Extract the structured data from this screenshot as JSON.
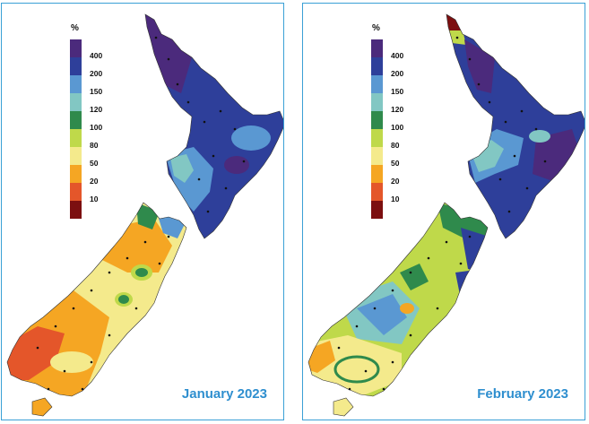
{
  "legend": {
    "unit": "%",
    "classes": [
      {
        "label": "400",
        "color": "#4b2a7c"
      },
      {
        "label": "200",
        "color": "#2e3f9a"
      },
      {
        "label": "150",
        "color": "#5a98d2"
      },
      {
        "label": "120",
        "color": "#82c7c3"
      },
      {
        "label": "100",
        "color": "#2f8a4c"
      },
      {
        "label": "80",
        "color": "#bfd94a"
      },
      {
        "label": "50",
        "color": "#f4ea8c"
      },
      {
        "label": "20",
        "color": "#f5a623"
      },
      {
        "label": "10",
        "color": "#e4562a"
      },
      {
        "label": "",
        "color": "#7c0f10"
      }
    ]
  },
  "panels": [
    {
      "title": "January 2023"
    },
    {
      "title": "February 2023"
    }
  ],
  "colors": {
    "panel_border": "#3aa0d6",
    "title": "#2f8fcf"
  }
}
